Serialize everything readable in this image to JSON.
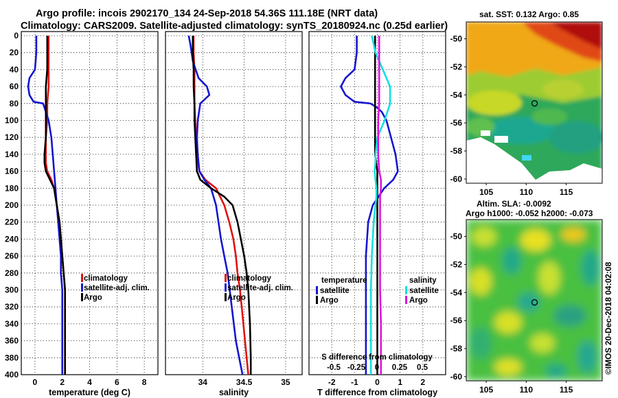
{
  "title": {
    "line1": "Argo profile: incois 2902170_134 24-Sep-2018 54.36S 111.18E (NRT data)",
    "line2": "Climatology: CARS2009. Satellite-adjusted climatology: synTS_20180924.nc (0.25d earlier)"
  },
  "colors": {
    "climatology": "#e01010",
    "satellite": "#1515d0",
    "argo": "#000000",
    "sal_sat": "#10e0e0",
    "sal_argo": "#e010e0"
  },
  "chart_data": [
    {
      "type": "line",
      "title": "",
      "xlabel": "temperature (deg C)",
      "ylabel": "",
      "xlim": [
        -1,
        9
      ],
      "ylim": [
        400,
        0
      ],
      "xticks": [
        "0",
        "2",
        "4",
        "6",
        "8"
      ],
      "yticks": [
        "0",
        "20",
        "40",
        "60",
        "80",
        "100",
        "120",
        "140",
        "160",
        "180",
        "200",
        "220",
        "240",
        "260",
        "280",
        "300",
        "320",
        "340",
        "360",
        "380",
        "400"
      ],
      "legend": [
        "climatology",
        "satellite-adj. clim.",
        "Argo"
      ],
      "series": [
        {
          "name": "climatology",
          "color": "#e01010",
          "x": [
            1.0,
            1.0,
            1.0,
            1.0,
            0.9,
            0.9,
            0.8,
            0.8,
            0.8,
            0.9,
            1.2,
            1.4,
            1.6,
            1.8,
            1.9,
            2.0,
            2.1,
            2.2,
            2.2,
            2.2,
            2.2
          ],
          "y": [
            0,
            20,
            40,
            60,
            80,
            100,
            120,
            140,
            150,
            160,
            170,
            180,
            200,
            220,
            240,
            260,
            280,
            300,
            340,
            380,
            400
          ]
        },
        {
          "name": "satellite-adj. clim.",
          "color": "#1515d0",
          "x": [
            0.1,
            0.1,
            0.0,
            -0.4,
            -0.5,
            -0.4,
            -0.1,
            0.6,
            1.0,
            1.2,
            1.3,
            1.4,
            1.5,
            1.6,
            1.7,
            1.8,
            1.9,
            1.9,
            2.0,
            2.0,
            2.0,
            2.0
          ],
          "y": [
            0,
            20,
            40,
            50,
            60,
            70,
            78,
            80,
            100,
            120,
            140,
            160,
            180,
            200,
            220,
            240,
            260,
            280,
            300,
            340,
            380,
            400
          ]
        },
        {
          "name": "Argo",
          "color": "#000000",
          "x": [
            0.9,
            0.9,
            0.9,
            0.8,
            0.8,
            0.8,
            0.8,
            0.7,
            0.7,
            0.8,
            1.1,
            1.4,
            1.6,
            1.8,
            1.9,
            2.0,
            2.1,
            2.2,
            2.2,
            2.2,
            2.2
          ],
          "y": [
            0,
            20,
            40,
            60,
            80,
            100,
            120,
            140,
            150,
            160,
            170,
            180,
            200,
            220,
            240,
            260,
            280,
            300,
            340,
            380,
            400
          ]
        }
      ]
    },
    {
      "type": "line",
      "title": "",
      "xlabel": "salinity",
      "ylabel": "",
      "xlim": [
        33.55,
        35.2
      ],
      "ylim": [
        400,
        0
      ],
      "xticks": [
        "34",
        "34.5",
        "35"
      ],
      "legend": [
        "climatology",
        "satellite-adj. clim.",
        "Argo"
      ],
      "series": [
        {
          "name": "climatology",
          "color": "#e01010",
          "x": [
            33.89,
            33.89,
            33.9,
            33.9,
            33.9,
            33.91,
            33.92,
            33.93,
            33.96,
            34.03,
            34.16,
            34.26,
            34.32,
            34.37,
            34.4,
            34.42,
            34.45,
            34.47,
            34.49,
            34.51,
            34.53,
            34.55
          ],
          "y": [
            0,
            20,
            40,
            60,
            80,
            100,
            120,
            140,
            160,
            170,
            180,
            200,
            220,
            240,
            260,
            280,
            300,
            320,
            340,
            360,
            380,
            400
          ]
        },
        {
          "name": "satellite-adj. clim.",
          "color": "#1515d0",
          "x": [
            33.83,
            33.85,
            33.88,
            33.95,
            34.05,
            34.08,
            33.97,
            33.94,
            33.93,
            33.94,
            33.96,
            34.02,
            34.1,
            34.16,
            34.19,
            34.22,
            34.26,
            34.3,
            34.35,
            34.4,
            34.44,
            34.48
          ],
          "y": [
            0,
            10,
            30,
            50,
            60,
            70,
            80,
            100,
            120,
            140,
            160,
            170,
            180,
            200,
            220,
            240,
            260,
            280,
            320,
            360,
            380,
            400
          ]
        },
        {
          "name": "Argo",
          "color": "#000000",
          "x": [
            33.88,
            33.88,
            33.89,
            33.89,
            33.9,
            33.9,
            33.91,
            33.92,
            33.93,
            33.97,
            34.1,
            34.26,
            34.36,
            34.42,
            34.46,
            34.5,
            34.53,
            34.55,
            34.56,
            34.57,
            34.58,
            34.58
          ],
          "y": [
            0,
            20,
            40,
            60,
            80,
            100,
            120,
            140,
            160,
            170,
            180,
            190,
            200,
            220,
            240,
            260,
            280,
            300,
            320,
            340,
            380,
            400
          ]
        }
      ]
    },
    {
      "type": "line",
      "title": "",
      "xlabel": "T difference from climatology",
      "ylabel": "",
      "xlim": [
        -3,
        3
      ],
      "ylim": [
        400,
        0
      ],
      "xticks": [
        "-2",
        "-1",
        "0",
        "1",
        "2"
      ],
      "secondary_xlabel": "S difference from climatology",
      "secondary_xticks": [
        "-0.5",
        "-0.25",
        "0",
        "0.25",
        "0.5"
      ],
      "legend_temperature": {
        "heading": "temperature",
        "items": [
          "satellite",
          "Argo"
        ]
      },
      "legend_salinity": {
        "heading": "salinity",
        "items": [
          "satellite",
          "Argo"
        ]
      },
      "series": [
        {
          "name": "T satellite",
          "color": "#1515d0",
          "x": [
            -0.9,
            -0.9,
            -1.0,
            -1.4,
            -1.6,
            -1.4,
            -1.0,
            -0.3,
            0.0,
            0.2,
            0.4,
            0.6,
            0.8,
            0.9,
            0.7,
            0.3,
            -0.2,
            -0.4,
            -0.5,
            -0.5,
            -0.5,
            -0.5,
            -0.5
          ],
          "y": [
            0,
            20,
            40,
            50,
            60,
            70,
            78,
            80,
            85,
            90,
            100,
            120,
            140,
            160,
            170,
            180,
            200,
            220,
            260,
            300,
            340,
            380,
            400
          ]
        },
        {
          "name": "T Argo",
          "color": "#000000",
          "x": [
            -0.1,
            -0.1,
            -0.1,
            -0.1,
            -0.1,
            -0.1,
            -0.1,
            -0.1,
            0.0,
            0.0,
            0.0,
            0.0,
            0.0,
            0.0,
            0.0
          ],
          "y": [
            0,
            20,
            40,
            60,
            80,
            100,
            120,
            140,
            160,
            180,
            200,
            240,
            300,
            360,
            400
          ]
        },
        {
          "name": "S satellite",
          "color": "#10e0e0",
          "x": [
            -0.06,
            -0.02,
            0.06,
            0.14,
            0.14,
            0.08,
            0.0,
            -0.02,
            -0.02,
            -0.03,
            -0.02,
            -0.01,
            -0.01,
            -0.02,
            -0.04,
            -0.06,
            -0.07,
            -0.07,
            -0.07,
            -0.07,
            -0.07
          ],
          "y": [
            0,
            20,
            40,
            60,
            80,
            100,
            120,
            140,
            150,
            160,
            170,
            180,
            190,
            200,
            220,
            260,
            300,
            340,
            360,
            380,
            400
          ]
        },
        {
          "name": "S Argo",
          "color": "#e010e0",
          "x": [
            0.02,
            0.02,
            0.02,
            0.02,
            0.02,
            0.01,
            0.01,
            0.01,
            0.02,
            0.04,
            0.04,
            0.03,
            0.03,
            0.03,
            0.03,
            0.03,
            0.04,
            0.04,
            0.04,
            0.04
          ],
          "y": [
            0,
            20,
            40,
            60,
            80,
            100,
            120,
            140,
            160,
            170,
            180,
            190,
            200,
            220,
            260,
            300,
            340,
            360,
            380,
            400
          ]
        }
      ]
    },
    {
      "type": "heatmap",
      "title": "sat. SST: 0.132 Argo: 0.85",
      "xticks": [
        "105",
        "110",
        "115"
      ],
      "yticks": [
        "-50",
        "-52",
        "-54",
        "-56",
        "-58",
        "-60"
      ],
      "xlim": [
        102.5,
        119.5
      ],
      "ylim": [
        -60.3,
        -48.8
      ],
      "marker": {
        "lon": 111.18,
        "lat": -54.36
      }
    },
    {
      "type": "heatmap",
      "title": "Altim. SLA: -0.0092",
      "subtitle": "Argo h1000: -0.052 h2000: -0.073",
      "xticks": [
        "105",
        "110",
        "115"
      ],
      "yticks": [
        "-50",
        "-52",
        "-54",
        "-56",
        "-58",
        "-60"
      ],
      "xlim": [
        102.5,
        119.5
      ],
      "ylim": [
        -60.3,
        -48.8
      ],
      "marker": {
        "lon": 111.18,
        "lat": -54.36
      }
    }
  ],
  "watermark": "©IMOS 20-Dec-2018 04:02:08"
}
